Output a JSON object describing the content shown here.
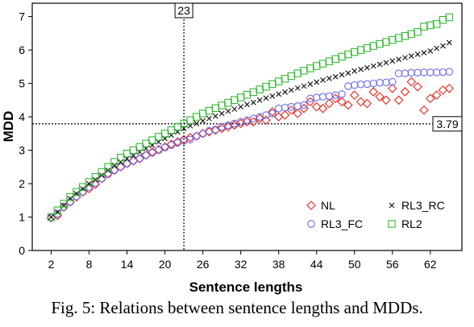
{
  "chart_data": {
    "type": "scatter",
    "title": "",
    "xlabel": "Sentence lengths",
    "ylabel": "MDD",
    "xlim": [
      -1,
      67
    ],
    "ylim": [
      0,
      7.4
    ],
    "x_ticks": [
      2,
      8,
      14,
      20,
      26,
      32,
      38,
      44,
      50,
      56,
      62
    ],
    "y_ticks": [
      0,
      1,
      2,
      3,
      4,
      5,
      6,
      7
    ],
    "grid": false,
    "legend_placement": "bottom-right",
    "reference_lines": [
      {
        "axis": "x",
        "value": 23,
        "label": "23"
      },
      {
        "axis": "y",
        "value": 3.79,
        "label": "3.79"
      }
    ],
    "series": [
      {
        "name": "NL",
        "marker": "diamond",
        "color": "#e8251c",
        "points": [
          [
            2,
            0.98
          ],
          [
            3,
            1.05
          ],
          [
            4,
            1.3
          ],
          [
            5,
            1.45
          ],
          [
            6,
            1.6
          ],
          [
            7,
            1.75
          ],
          [
            8,
            1.85
          ],
          [
            9,
            1.98
          ],
          [
            10,
            2.15
          ],
          [
            11,
            2.3
          ],
          [
            12,
            2.4
          ],
          [
            13,
            2.5
          ],
          [
            14,
            2.6
          ],
          [
            15,
            2.68
          ],
          [
            16,
            2.75
          ],
          [
            17,
            2.85
          ],
          [
            18,
            2.95
          ],
          [
            19,
            3.02
          ],
          [
            20,
            3.1
          ],
          [
            21,
            3.18
          ],
          [
            22,
            3.25
          ],
          [
            23,
            3.32
          ],
          [
            24,
            3.38
          ],
          [
            25,
            3.42
          ],
          [
            26,
            3.5
          ],
          [
            27,
            3.55
          ],
          [
            28,
            3.6
          ],
          [
            29,
            3.65
          ],
          [
            30,
            3.7
          ],
          [
            31,
            3.75
          ],
          [
            32,
            3.8
          ],
          [
            33,
            3.85
          ],
          [
            34,
            3.85
          ],
          [
            35,
            3.95
          ],
          [
            36,
            3.9
          ],
          [
            37,
            4.15
          ],
          [
            38,
            4.0
          ],
          [
            39,
            4.05
          ],
          [
            40,
            4.2
          ],
          [
            41,
            4.1
          ],
          [
            42,
            4.25
          ],
          [
            43,
            4.45
          ],
          [
            44,
            4.3
          ],
          [
            45,
            4.25
          ],
          [
            46,
            4.4
          ],
          [
            47,
            4.55
          ],
          [
            48,
            4.45
          ],
          [
            49,
            4.35
          ],
          [
            50,
            4.65
          ],
          [
            51,
            4.45
          ],
          [
            52,
            4.4
          ],
          [
            53,
            4.75
          ],
          [
            54,
            4.6
          ],
          [
            55,
            4.5
          ],
          [
            56,
            4.85
          ],
          [
            57,
            4.5
          ],
          [
            58,
            4.75
          ],
          [
            59,
            5.05
          ],
          [
            60,
            4.9
          ],
          [
            61,
            4.2
          ],
          [
            62,
            4.55
          ],
          [
            63,
            4.65
          ],
          [
            64,
            4.8
          ],
          [
            65,
            4.85
          ]
        ]
      },
      {
        "name": "RL3_RC",
        "marker": "x",
        "color": "#1a1a1a",
        "points": [
          [
            2,
            1.0
          ],
          [
            3,
            1.15
          ],
          [
            4,
            1.35
          ],
          [
            5,
            1.55
          ],
          [
            6,
            1.7
          ],
          [
            7,
            1.85
          ],
          [
            8,
            2.0
          ],
          [
            9,
            2.12
          ],
          [
            10,
            2.25
          ],
          [
            11,
            2.4
          ],
          [
            12,
            2.55
          ],
          [
            13,
            2.65
          ],
          [
            14,
            2.75
          ],
          [
            15,
            2.85
          ],
          [
            16,
            2.95
          ],
          [
            17,
            3.05
          ],
          [
            18,
            3.15
          ],
          [
            19,
            3.25
          ],
          [
            20,
            3.35
          ],
          [
            21,
            3.45
          ],
          [
            22,
            3.55
          ],
          [
            23,
            3.65
          ],
          [
            24,
            3.73
          ],
          [
            25,
            3.8
          ],
          [
            26,
            3.88
          ],
          [
            27,
            3.95
          ],
          [
            28,
            4.02
          ],
          [
            29,
            4.1
          ],
          [
            30,
            4.17
          ],
          [
            31,
            4.23
          ],
          [
            32,
            4.3
          ],
          [
            33,
            4.37
          ],
          [
            34,
            4.43
          ],
          [
            35,
            4.5
          ],
          [
            36,
            4.56
          ],
          [
            37,
            4.62
          ],
          [
            38,
            4.68
          ],
          [
            39,
            4.74
          ],
          [
            40,
            4.8
          ],
          [
            41,
            4.86
          ],
          [
            42,
            4.92
          ],
          [
            43,
            4.98
          ],
          [
            44,
            5.04
          ],
          [
            45,
            5.1
          ],
          [
            46,
            5.15
          ],
          [
            47,
            5.2
          ],
          [
            48,
            5.26
          ],
          [
            49,
            5.31
          ],
          [
            50,
            5.37
          ],
          [
            51,
            5.42
          ],
          [
            52,
            5.47
          ],
          [
            53,
            5.52
          ],
          [
            54,
            5.57
          ],
          [
            55,
            5.62
          ],
          [
            56,
            5.67
          ],
          [
            57,
            5.72
          ],
          [
            58,
            5.77
          ],
          [
            59,
            5.82
          ],
          [
            60,
            5.87
          ],
          [
            61,
            5.92
          ],
          [
            62,
            5.97
          ],
          [
            63,
            6.05
          ],
          [
            64,
            6.12
          ],
          [
            65,
            6.22
          ]
        ]
      },
      {
        "name": "RL3_FC",
        "marker": "circle",
        "color": "#6a6ae8",
        "points": [
          [
            2,
            0.98
          ],
          [
            3,
            1.1
          ],
          [
            4,
            1.3
          ],
          [
            5,
            1.45
          ],
          [
            6,
            1.62
          ],
          [
            7,
            1.75
          ],
          [
            8,
            1.9
          ],
          [
            9,
            2.02
          ],
          [
            10,
            2.15
          ],
          [
            11,
            2.28
          ],
          [
            12,
            2.4
          ],
          [
            13,
            2.5
          ],
          [
            14,
            2.6
          ],
          [
            15,
            2.68
          ],
          [
            16,
            2.75
          ],
          [
            17,
            2.85
          ],
          [
            18,
            2.92
          ],
          [
            19,
            3.0
          ],
          [
            20,
            3.08
          ],
          [
            21,
            3.15
          ],
          [
            22,
            3.22
          ],
          [
            23,
            3.28
          ],
          [
            24,
            3.32
          ],
          [
            25,
            3.42
          ],
          [
            26,
            3.5
          ],
          [
            27,
            3.58
          ],
          [
            28,
            3.62
          ],
          [
            29,
            3.7
          ],
          [
            30,
            3.75
          ],
          [
            31,
            3.8
          ],
          [
            32,
            3.85
          ],
          [
            33,
            3.9
          ],
          [
            34,
            3.95
          ],
          [
            35,
            4.0
          ],
          [
            36,
            4.05
          ],
          [
            37,
            4.1
          ],
          [
            38,
            4.25
          ],
          [
            39,
            4.28
          ],
          [
            40,
            4.3
          ],
          [
            41,
            4.32
          ],
          [
            42,
            4.35
          ],
          [
            43,
            4.55
          ],
          [
            44,
            4.58
          ],
          [
            45,
            4.6
          ],
          [
            46,
            4.62
          ],
          [
            47,
            4.65
          ],
          [
            48,
            4.68
          ],
          [
            49,
            4.92
          ],
          [
            50,
            4.95
          ],
          [
            51,
            4.97
          ],
          [
            52,
            4.98
          ],
          [
            53,
            5.0
          ],
          [
            54,
            5.02
          ],
          [
            55,
            5.03
          ],
          [
            56,
            5.05
          ],
          [
            57,
            5.3
          ],
          [
            58,
            5.3
          ],
          [
            59,
            5.32
          ],
          [
            60,
            5.32
          ],
          [
            61,
            5.33
          ],
          [
            62,
            5.33
          ],
          [
            63,
            5.33
          ],
          [
            64,
            5.34
          ],
          [
            65,
            5.35
          ]
        ]
      },
      {
        "name": "RL2",
        "marker": "square",
        "color": "#33b833",
        "points": [
          [
            2,
            1.0
          ],
          [
            3,
            1.2
          ],
          [
            4,
            1.4
          ],
          [
            5,
            1.6
          ],
          [
            6,
            1.75
          ],
          [
            7,
            1.9
          ],
          [
            8,
            2.05
          ],
          [
            9,
            2.2
          ],
          [
            10,
            2.35
          ],
          [
            11,
            2.5
          ],
          [
            12,
            2.65
          ],
          [
            13,
            2.78
          ],
          [
            14,
            2.9
          ],
          [
            15,
            3.0
          ],
          [
            16,
            3.1
          ],
          [
            17,
            3.2
          ],
          [
            18,
            3.3
          ],
          [
            19,
            3.4
          ],
          [
            20,
            3.5
          ],
          [
            21,
            3.6
          ],
          [
            22,
            3.7
          ],
          [
            23,
            3.8
          ],
          [
            24,
            3.9
          ],
          [
            25,
            4.0
          ],
          [
            26,
            4.1
          ],
          [
            27,
            4.18
          ],
          [
            28,
            4.26
          ],
          [
            29,
            4.34
          ],
          [
            30,
            4.42
          ],
          [
            31,
            4.5
          ],
          [
            32,
            4.58
          ],
          [
            33,
            4.66
          ],
          [
            34,
            4.74
          ],
          [
            35,
            4.82
          ],
          [
            36,
            4.9
          ],
          [
            37,
            4.98
          ],
          [
            38,
            5.06
          ],
          [
            39,
            5.14
          ],
          [
            40,
            5.22
          ],
          [
            41,
            5.3
          ],
          [
            42,
            5.38
          ],
          [
            43,
            5.45
          ],
          [
            44,
            5.52
          ],
          [
            45,
            5.59
          ],
          [
            46,
            5.66
          ],
          [
            47,
            5.73
          ],
          [
            48,
            5.8
          ],
          [
            49,
            5.87
          ],
          [
            50,
            5.94
          ],
          [
            51,
            6.0
          ],
          [
            52,
            6.06
          ],
          [
            53,
            6.12
          ],
          [
            54,
            6.18
          ],
          [
            55,
            6.24
          ],
          [
            56,
            6.3
          ],
          [
            57,
            6.36
          ],
          [
            58,
            6.42
          ],
          [
            59,
            6.48
          ],
          [
            60,
            6.54
          ],
          [
            61,
            6.7
          ],
          [
            62,
            6.74
          ],
          [
            63,
            6.78
          ],
          [
            64,
            6.9
          ],
          [
            65,
            6.98
          ]
        ]
      }
    ]
  },
  "caption": "Fig. 5: Relations between sentence lengths and MDDs."
}
